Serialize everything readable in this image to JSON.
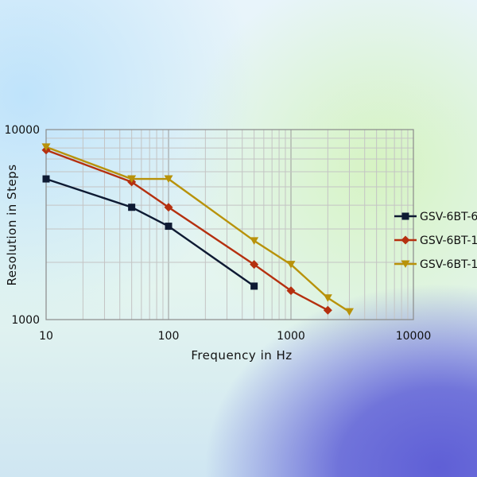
{
  "chart_data": {
    "type": "line",
    "title": "",
    "xlabel": "Frequency  in Hz",
    "ylabel": "Resolution in Steps",
    "x_scale": "log",
    "y_scale": "log",
    "xlim": [
      10,
      10000
    ],
    "ylim": [
      1000,
      10000
    ],
    "x_ticks": [
      "10",
      "100",
      "1000",
      "10000"
    ],
    "y_ticks": [
      "1000",
      "10000"
    ],
    "grid": true,
    "legend_position": "right (partially cut off)",
    "series": [
      {
        "name": "GSV-6BT-6",
        "color": "#0e1a33",
        "marker": "square",
        "x": [
          10,
          50,
          100,
          500
        ],
        "y": [
          5500,
          3900,
          3100,
          1500
        ]
      },
      {
        "name": "GSV-6BT-1",
        "color": "#b5300f",
        "marker": "diamond",
        "x": [
          10,
          50,
          100,
          500,
          1000,
          2000
        ],
        "y": [
          7800,
          5300,
          3900,
          1950,
          1420,
          1120
        ]
      },
      {
        "name": "GSV-6BT-1",
        "color": "#b8920a",
        "marker": "triangle-down",
        "x": [
          10,
          50,
          100,
          500,
          1000,
          2000,
          3000
        ],
        "y": [
          8100,
          5500,
          5500,
          2600,
          1950,
          1300,
          1100
        ]
      }
    ]
  }
}
